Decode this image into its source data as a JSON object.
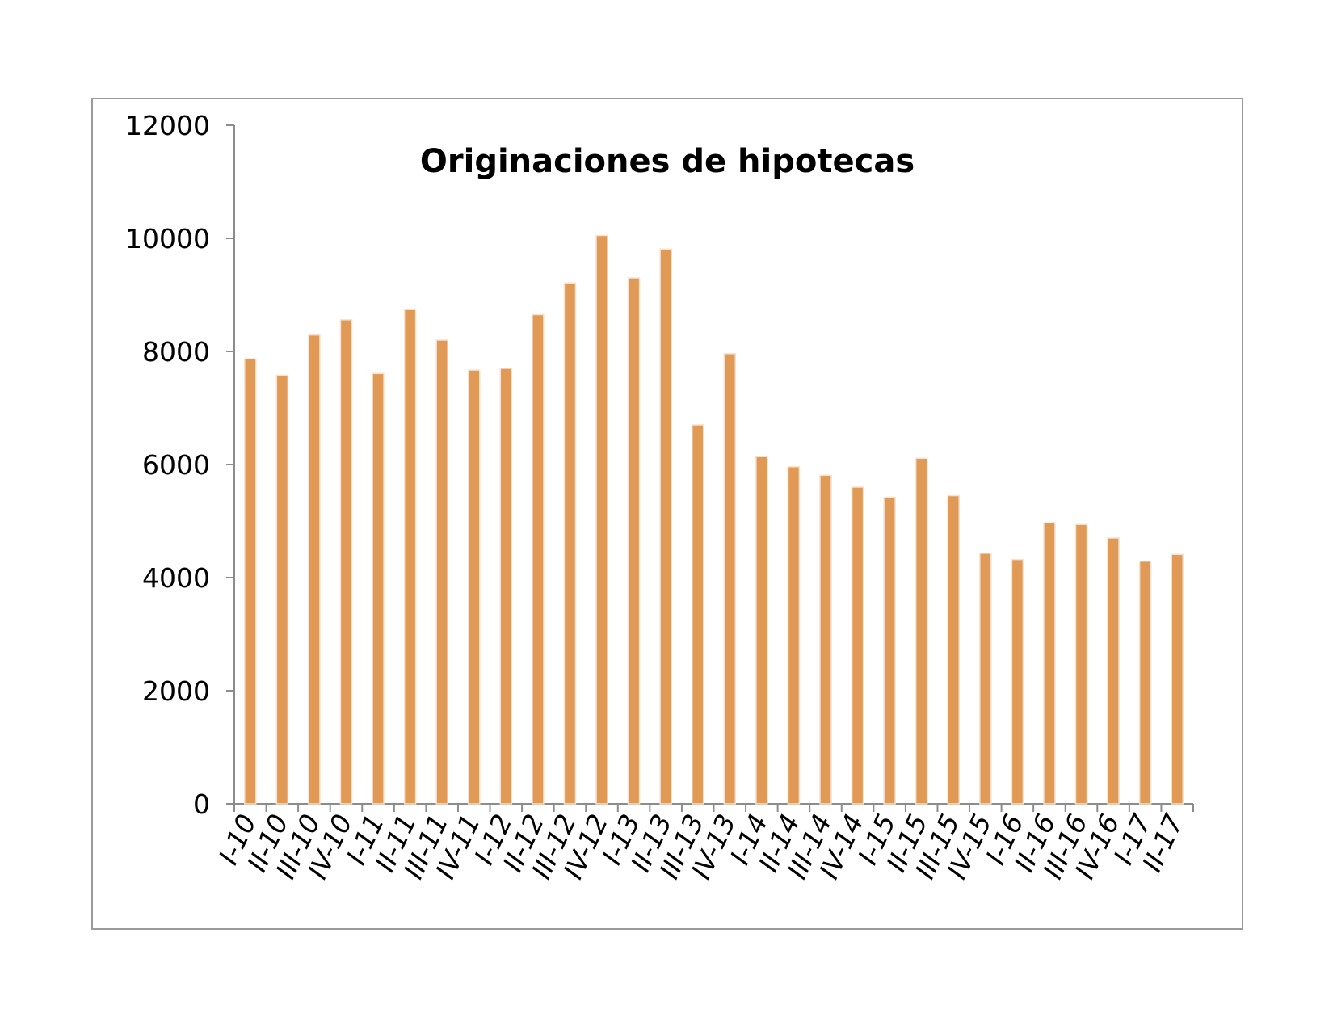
{
  "chart_data": {
    "type": "bar",
    "title": "Originaciones de hipotecas",
    "xlabel": "",
    "ylabel": "",
    "ylim": [
      0,
      12000
    ],
    "yticks": [
      0,
      2000,
      4000,
      6000,
      8000,
      10000,
      12000
    ],
    "grid": false,
    "legend": "none",
    "bar_color": "#E09A55",
    "bar_edge_color": "#F6E2CE",
    "categories": [
      "I-10",
      "II-10",
      "III-10",
      "IV-10",
      "I-11",
      "II-11",
      "III-11",
      "IV-11",
      "I-12",
      "II-12",
      "III-12",
      "IV-12",
      "I-13",
      "II-13",
      "III-13",
      "IV-13",
      "I-14",
      "II-14",
      "III-14",
      "IV-14",
      "I-15",
      "II-15",
      "III-15",
      "IV-15",
      "I-16",
      "II-16",
      "III-16",
      "IV-16",
      "I-17",
      "II-17"
    ],
    "values": [
      7870,
      7580,
      8290,
      8560,
      7610,
      8740,
      8200,
      7670,
      7700,
      8650,
      9210,
      10050,
      9300,
      9810,
      6700,
      7960,
      6140,
      5960,
      5810,
      5600,
      5420,
      6110,
      5450,
      4430,
      4320,
      4970,
      4940,
      4700,
      4290,
      4410
    ]
  }
}
